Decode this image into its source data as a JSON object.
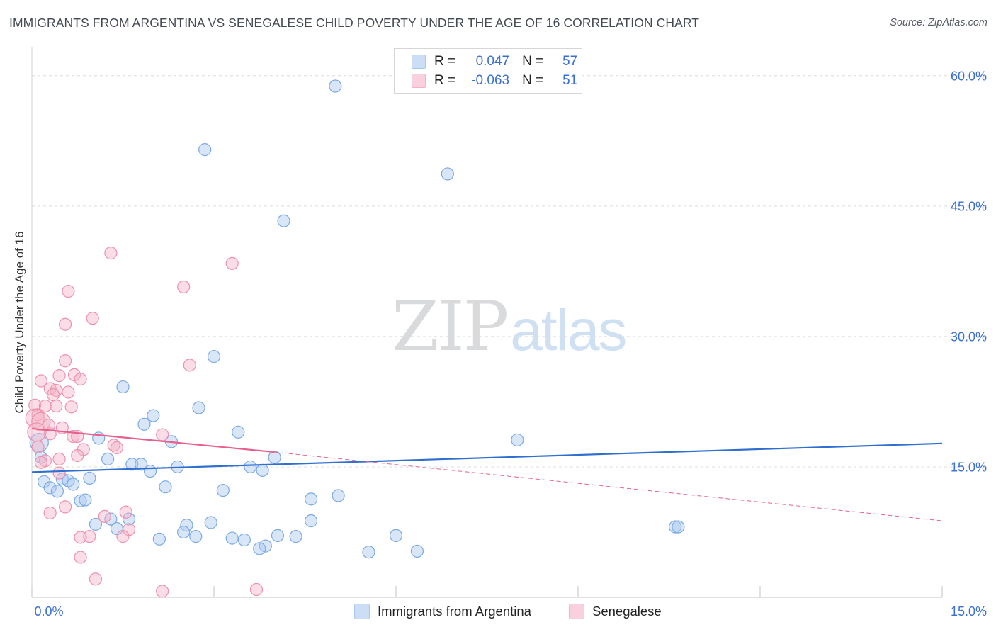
{
  "header": {
    "title": "IMMIGRANTS FROM ARGENTINA VS SENEGALESE CHILD POVERTY UNDER THE AGE OF 16 CORRELATION CHART",
    "source": "Source: ZipAtlas.com"
  },
  "watermark": {
    "zip": "ZIP",
    "atlas": "atlas"
  },
  "legend": {
    "rows": [
      {
        "r_label": "R =",
        "r_value": "0.047",
        "n_label": "N =",
        "n_value": "57",
        "color": "#a9c8f0"
      },
      {
        "r_label": "R =",
        "r_value": "-0.063",
        "n_label": "N =",
        "n_value": "51",
        "color": "#f5b3c8"
      }
    ]
  },
  "bottom_legend": [
    {
      "label": "Immigrants from Argentina",
      "color": "#a9c8f0"
    },
    {
      "label": "Senegalese",
      "color": "#f5b3c8"
    }
  ],
  "chart_data": {
    "type": "scatter",
    "title": "IMMIGRANTS FROM ARGENTINA VS SENEGALESE CHILD POVERTY UNDER THE AGE OF 16 CORRELATION CHART",
    "xlabel": "",
    "ylabel": "Child Poverty Under the Age of 16",
    "xlim": [
      0,
      15
    ],
    "ylim": [
      0,
      63
    ],
    "x_tick_labels": [
      "0.0%",
      "15.0%"
    ],
    "y_ticks": [
      15,
      30,
      45,
      60
    ],
    "y_tick_labels": [
      "15.0%",
      "30.0%",
      "45.0%",
      "60.0%"
    ],
    "grid": true,
    "legend_position": "top-center",
    "series": [
      {
        "name": "Immigrants from Argentina",
        "color": "#7aaae6",
        "fill": "#a9c8f0",
        "points": [
          [
            5.0,
            58.8
          ],
          [
            2.85,
            51.5
          ],
          [
            6.85,
            48.7
          ],
          [
            4.15,
            43.3
          ],
          [
            3.0,
            27.7
          ],
          [
            1.5,
            24.2
          ],
          [
            2.75,
            21.8
          ],
          [
            2.0,
            20.9
          ],
          [
            1.85,
            19.9
          ],
          [
            3.4,
            19.0
          ],
          [
            1.1,
            18.3
          ],
          [
            2.3,
            17.9
          ],
          [
            8.0,
            18.1
          ],
          [
            0.15,
            16.1
          ],
          [
            1.25,
            15.9
          ],
          [
            1.65,
            15.3
          ],
          [
            1.8,
            15.3
          ],
          [
            4.0,
            16.1
          ],
          [
            2.4,
            15.0
          ],
          [
            3.6,
            15.0
          ],
          [
            3.8,
            14.6
          ],
          [
            1.95,
            14.5
          ],
          [
            0.95,
            13.7
          ],
          [
            0.5,
            13.6
          ],
          [
            0.6,
            13.4
          ],
          [
            0.2,
            13.3
          ],
          [
            0.68,
            13.0
          ],
          [
            0.3,
            12.6
          ],
          [
            0.42,
            12.2
          ],
          [
            2.2,
            12.7
          ],
          [
            3.15,
            12.3
          ],
          [
            0.8,
            11.1
          ],
          [
            0.88,
            11.2
          ],
          [
            4.6,
            11.3
          ],
          [
            5.05,
            11.7
          ],
          [
            1.6,
            9.0
          ],
          [
            1.3,
            9.0
          ],
          [
            1.05,
            8.4
          ],
          [
            1.4,
            7.9
          ],
          [
            2.55,
            8.3
          ],
          [
            2.95,
            8.6
          ],
          [
            4.6,
            8.8
          ],
          [
            2.5,
            7.5
          ],
          [
            2.7,
            7.0
          ],
          [
            3.3,
            6.8
          ],
          [
            3.5,
            6.6
          ],
          [
            2.1,
            6.7
          ],
          [
            4.05,
            7.1
          ],
          [
            4.35,
            7.0
          ],
          [
            6.0,
            7.1
          ],
          [
            3.85,
            5.9
          ],
          [
            3.75,
            5.6
          ],
          [
            5.55,
            5.2
          ],
          [
            6.35,
            5.3
          ],
          [
            10.6,
            8.1
          ],
          [
            10.65,
            8.1
          ],
          [
            0.12,
            17.8
          ]
        ]
      },
      {
        "name": "Senegalese",
        "color": "#ee90ae",
        "fill": "#f5b3c8",
        "points": [
          [
            1.3,
            39.6
          ],
          [
            3.3,
            38.4
          ],
          [
            2.5,
            35.7
          ],
          [
            0.6,
            35.2
          ],
          [
            1.0,
            32.1
          ],
          [
            0.55,
            31.4
          ],
          [
            0.55,
            27.2
          ],
          [
            2.6,
            26.7
          ],
          [
            0.45,
            25.5
          ],
          [
            0.7,
            25.6
          ],
          [
            0.15,
            24.9
          ],
          [
            0.8,
            25.1
          ],
          [
            0.3,
            24.0
          ],
          [
            0.4,
            23.8
          ],
          [
            0.35,
            23.3
          ],
          [
            0.6,
            23.6
          ],
          [
            0.05,
            22.1
          ],
          [
            0.22,
            22.0
          ],
          [
            0.4,
            22.0
          ],
          [
            0.65,
            21.9
          ],
          [
            0.1,
            21.0
          ],
          [
            0.05,
            20.6
          ],
          [
            0.15,
            20.2
          ],
          [
            0.5,
            19.5
          ],
          [
            0.3,
            18.8
          ],
          [
            0.68,
            18.5
          ],
          [
            0.75,
            18.5
          ],
          [
            2.15,
            18.7
          ],
          [
            1.35,
            17.5
          ],
          [
            1.4,
            17.2
          ],
          [
            0.85,
            17.0
          ],
          [
            0.1,
            17.3
          ],
          [
            0.22,
            15.7
          ],
          [
            0.45,
            15.9
          ],
          [
            0.75,
            16.3
          ],
          [
            0.15,
            15.5
          ],
          [
            0.45,
            14.3
          ],
          [
            1.55,
            9.8
          ],
          [
            0.3,
            9.7
          ],
          [
            0.55,
            10.4
          ],
          [
            1.2,
            9.3
          ],
          [
            1.6,
            7.8
          ],
          [
            0.95,
            7.0
          ],
          [
            1.5,
            7.0
          ],
          [
            0.8,
            6.9
          ],
          [
            0.8,
            4.6
          ],
          [
            1.05,
            2.1
          ],
          [
            2.15,
            0.7
          ],
          [
            3.7,
            0.9
          ],
          [
            0.08,
            19.0
          ],
          [
            0.28,
            19.8
          ]
        ]
      }
    ],
    "trend_lines": [
      {
        "series": "Immigrants from Argentina",
        "color": "#2f6fcf",
        "x": [
          0,
          15
        ],
        "y": [
          14.4,
          17.7
        ],
        "style": "solid"
      },
      {
        "series": "Senegalese",
        "color": "#e8618e",
        "x": [
          0,
          4.0
        ],
        "y": [
          19.4,
          16.7
        ],
        "style": "solid"
      },
      {
        "series": "Senegalese",
        "color": "#e8618e",
        "x": [
          4.0,
          15
        ],
        "y": [
          16.7,
          8.8
        ],
        "style": "dashed"
      }
    ]
  }
}
